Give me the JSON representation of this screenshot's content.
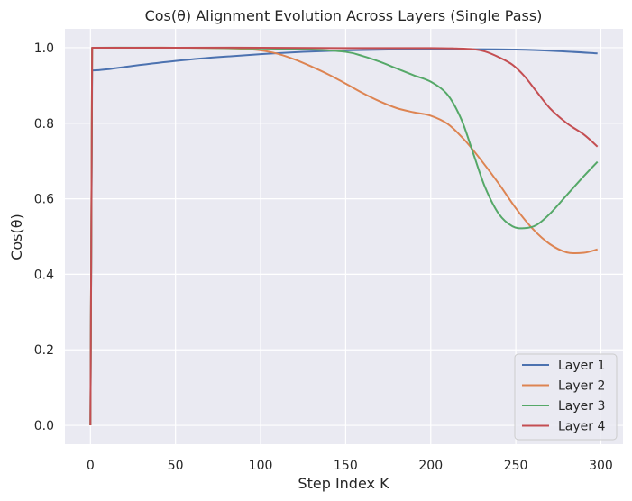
{
  "chart_data": {
    "type": "line",
    "title": "Cos(θ) Alignment Evolution Across Layers (Single Pass)",
    "xlabel": "Step Index K",
    "ylabel": "Cos(θ)",
    "xlim": [
      -15,
      313
    ],
    "ylim": [
      -0.05,
      1.05
    ],
    "xticks": [
      0,
      50,
      100,
      150,
      200,
      250,
      300
    ],
    "yticks": [
      0.0,
      0.2,
      0.4,
      0.6,
      0.8,
      1.0
    ],
    "xtick_labels": [
      "0",
      "50",
      "100",
      "150",
      "200",
      "250",
      "300"
    ],
    "ytick_labels": [
      "0.0",
      "0.2",
      "0.4",
      "0.6",
      "0.8",
      "1.0"
    ],
    "grid": true,
    "legend_position": "lower-right",
    "background": "#eaeaf2",
    "series": [
      {
        "name": "Layer 1",
        "color": "#4c72b0",
        "x": [
          0,
          1,
          2,
          10,
          25,
          50,
          75,
          100,
          125,
          150,
          175,
          200,
          225,
          250,
          275,
          298
        ],
        "y": [
          0,
          0.94,
          0.94,
          0.943,
          0.952,
          0.965,
          0.975,
          0.983,
          0.989,
          0.993,
          0.995,
          0.996,
          0.996,
          0.995,
          0.991,
          0.985
        ]
      },
      {
        "name": "Layer 2",
        "color": "#dd8452",
        "x": [
          0,
          1,
          2,
          25,
          50,
          75,
          90,
          100,
          110,
          120,
          130,
          140,
          150,
          160,
          170,
          180,
          190,
          200,
          210,
          220,
          230,
          240,
          250,
          260,
          270,
          280,
          290,
          298
        ],
        "y": [
          0,
          1.0,
          1.0,
          1.0,
          1.0,
          0.999,
          0.997,
          0.993,
          0.984,
          0.969,
          0.95,
          0.929,
          0.905,
          0.88,
          0.858,
          0.84,
          0.829,
          0.82,
          0.798,
          0.755,
          0.7,
          0.64,
          0.575,
          0.52,
          0.48,
          0.458,
          0.457,
          0.466
        ]
      },
      {
        "name": "Layer 3",
        "color": "#55a868",
        "x": [
          0,
          1,
          2,
          50,
          100,
          130,
          150,
          160,
          170,
          180,
          190,
          200,
          210,
          218,
          225,
          232,
          240,
          248,
          255,
          262,
          270,
          280,
          290,
          298
        ],
        "y": [
          0,
          1.0,
          1.0,
          1.0,
          0.998,
          0.995,
          0.989,
          0.978,
          0.963,
          0.945,
          0.927,
          0.91,
          0.875,
          0.81,
          0.72,
          0.63,
          0.56,
          0.527,
          0.522,
          0.53,
          0.56,
          0.61,
          0.66,
          0.698
        ]
      },
      {
        "name": "Layer 4",
        "color": "#c44e52",
        "x": [
          0,
          1,
          2,
          50,
          100,
          150,
          200,
          215,
          225,
          232,
          240,
          248,
          255,
          262,
          270,
          280,
          290,
          298
        ],
        "y": [
          0,
          1.0,
          1.0,
          1.0,
          1.0,
          0.999,
          0.999,
          0.998,
          0.996,
          0.99,
          0.975,
          0.955,
          0.925,
          0.885,
          0.84,
          0.8,
          0.77,
          0.738
        ]
      }
    ]
  }
}
